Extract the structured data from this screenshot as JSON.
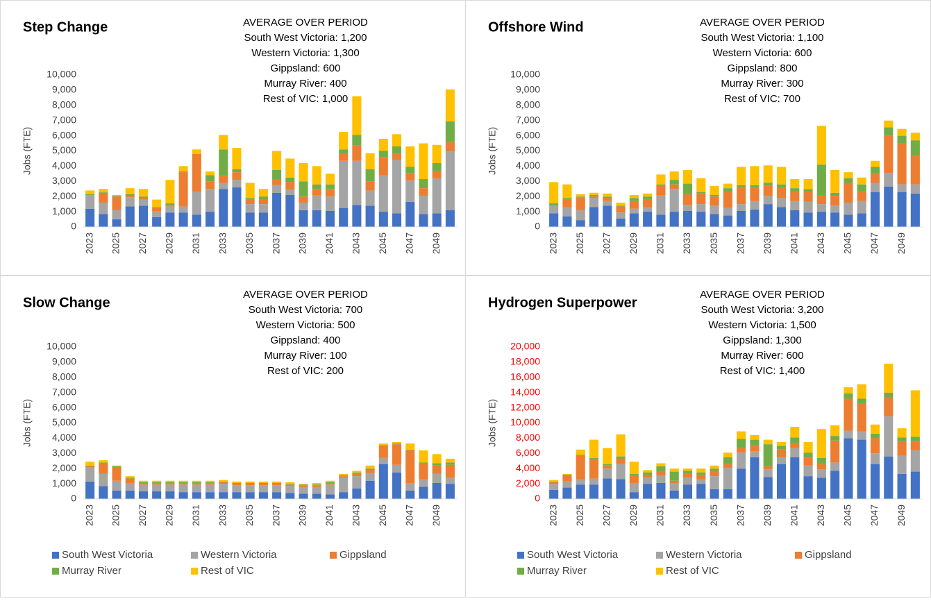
{
  "chart_data": [
    {
      "type": "bar",
      "stacked": true,
      "title": "Step Change",
      "annotation": [
        "AVERAGE OVER PERIOD",
        "South West Victoria: 1,200",
        "Western Victoria: 1,300",
        "Gippsland: 600",
        "Murray River: 400",
        "Rest of VIC: 1,000"
      ],
      "ylabel": "Jobs (FTE)",
      "categories": [
        "2023",
        null,
        "2025",
        null,
        "2027",
        null,
        "2029",
        null,
        "2031",
        null,
        "2033",
        null,
        "2035",
        null,
        "2037",
        null,
        "2039",
        null,
        "2041",
        null,
        "2043",
        null,
        "2045",
        null,
        "2047",
        null,
        "2049",
        null
      ],
      "series": [
        {
          "color": "#4472c4",
          "values": [
            1200,
            850,
            500,
            1350,
            1400,
            650,
            950,
            950,
            800,
            1000,
            2500,
            2600,
            950,
            950,
            2250,
            2100,
            1100,
            1100,
            1050,
            1250,
            1450,
            1400,
            1000,
            900,
            1650,
            850,
            900,
            1100
          ]
        },
        {
          "color": "#a5a5a5",
          "values": [
            900,
            750,
            600,
            600,
            400,
            400,
            400,
            400,
            1500,
            1500,
            400,
            500,
            550,
            550,
            500,
            350,
            500,
            1000,
            950,
            3100,
            2900,
            1000,
            2400,
            3500,
            1400,
            1200,
            2300,
            3900
          ]
        },
        {
          "color": "#ed7d31",
          "values": [
            0,
            650,
            900,
            100,
            100,
            200,
            100,
            2250,
            2500,
            500,
            500,
            500,
            300,
            300,
            400,
            500,
            400,
            400,
            500,
            450,
            1000,
            600,
            1200,
            400,
            500,
            500,
            500,
            600
          ]
        },
        {
          "color": "#70ad47",
          "values": [
            50,
            50,
            50,
            100,
            100,
            50,
            100,
            50,
            0,
            400,
            1700,
            200,
            100,
            200,
            600,
            300,
            1000,
            300,
            300,
            300,
            700,
            800,
            400,
            500,
            400,
            600,
            500,
            1350
          ]
        },
        {
          "color": "#ffc000",
          "values": [
            250,
            200,
            50,
            400,
            500,
            500,
            1550,
            350,
            300,
            250,
            950,
            1400,
            1000,
            500,
            1250,
            1250,
            1200,
            1200,
            700,
            1150,
            2550,
            1050,
            800,
            800,
            1350,
            2350,
            1200,
            2100
          ]
        }
      ],
      "ylim": [
        0,
        10000
      ],
      "yticks": [
        0,
        {
          "value": 1000,
          "label": "1,000"
        },
        {
          "value": 2000,
          "label": "2,000"
        },
        {
          "value": 3000,
          "label": "3,000"
        },
        {
          "value": 4000,
          "label": "4,000"
        },
        {
          "value": 5000,
          "label": "5,000"
        },
        {
          "value": 6000,
          "label": "6,000"
        },
        {
          "value": 7000,
          "label": "7,000"
        },
        {
          "value": 8000,
          "label": "8,000"
        },
        {
          "value": 9000,
          "label": "9,000"
        },
        {
          "value": 10000,
          "label": "10,000"
        }
      ],
      "ytick_color": "#404040",
      "grid": false
    },
    {
      "type": "bar",
      "stacked": true,
      "title": "Offshore Wind",
      "annotation": [
        "AVERAGE OVER PERIOD",
        "South West Victoria: 1,100",
        "Western Victoria: 600",
        "Gippsland: 800",
        "Murray River: 300",
        "Rest of VIC: 700"
      ],
      "ylabel": "Jobs (FTE)",
      "categories": [
        "2023",
        null,
        "2025",
        null,
        "2027",
        null,
        "2029",
        null,
        "2031",
        null,
        "2033",
        null,
        "2035",
        null,
        "2037",
        null,
        "2039",
        null,
        "2041",
        null,
        "2043",
        null,
        "2045",
        null,
        "2047",
        null,
        "2049",
        null
      ],
      "series": [
        {
          "color": "#4472c4",
          "values": [
            900,
            700,
            450,
            1300,
            1400,
            550,
            900,
            1000,
            800,
            1000,
            1050,
            1000,
            850,
            750,
            1050,
            1150,
            1500,
            1300,
            1100,
            950,
            1000,
            950,
            800,
            900,
            2300,
            2650,
            2300,
            2200
          ]
        },
        {
          "color": "#a5a5a5",
          "values": [
            500,
            600,
            650,
            600,
            300,
            400,
            300,
            300,
            1300,
            1500,
            400,
            500,
            550,
            500,
            450,
            550,
            550,
            600,
            600,
            700,
            500,
            450,
            800,
            800,
            600,
            900,
            500,
            600
          ]
        },
        {
          "color": "#ed7d31",
          "values": [
            0,
            500,
            850,
            100,
            200,
            400,
            500,
            500,
            600,
            300,
            700,
            700,
            600,
            1100,
            1100,
            900,
            650,
            700,
            650,
            650,
            600,
            650,
            1300,
            600,
            600,
            2450,
            2700,
            1900
          ]
        },
        {
          "color": "#70ad47",
          "values": [
            150,
            100,
            50,
            100,
            100,
            50,
            200,
            200,
            100,
            300,
            700,
            100,
            100,
            200,
            150,
            150,
            200,
            200,
            200,
            200,
            2000,
            200,
            300,
            500,
            450,
            550,
            500,
            1000
          ]
        },
        {
          "color": "#ffc000",
          "values": [
            1400,
            900,
            150,
            150,
            200,
            200,
            200,
            200,
            650,
            550,
            900,
            900,
            600,
            300,
            1200,
            1250,
            1150,
            1150,
            600,
            650,
            2550,
            1500,
            400,
            450,
            400,
            450,
            450,
            500
          ]
        }
      ],
      "ylim": [
        0,
        10000
      ],
      "yticks": [
        0,
        {
          "value": 1000,
          "label": "1,000"
        },
        {
          "value": 2000,
          "label": "2,000"
        },
        {
          "value": 3000,
          "label": "3,000"
        },
        {
          "value": 4000,
          "label": "4,000"
        },
        {
          "value": 5000,
          "label": "5,000"
        },
        {
          "value": 6000,
          "label": "6,000"
        },
        {
          "value": 7000,
          "label": "7,000"
        },
        {
          "value": 8000,
          "label": "8,000"
        },
        {
          "value": 9000,
          "label": "9,000"
        },
        {
          "value": 10000,
          "label": "10,000"
        }
      ],
      "ytick_color": "#404040",
      "grid": false
    },
    {
      "type": "bar",
      "stacked": true,
      "title": "Slow Change",
      "annotation": [
        "AVERAGE OVER PERIOD",
        "South West Victoria: 700",
        "Western Victoria: 500",
        "Gippsland: 400",
        "Murray River: 100",
        "Rest of VIC: 200"
      ],
      "ylabel": "Jobs (FTE)",
      "categories": [
        "2023",
        null,
        "2025",
        null,
        "2027",
        null,
        "2029",
        null,
        "2031",
        null,
        "2033",
        null,
        "2035",
        null,
        "2037",
        null,
        "2039",
        null,
        "2041",
        null,
        "2043",
        null,
        "2045",
        null,
        "2047",
        null,
        "2049",
        null
      ],
      "series": [
        {
          "name": "South West Victoria",
          "color": "#4472c4",
          "values": [
            1150,
            850,
            550,
            550,
            500,
            500,
            500,
            450,
            450,
            450,
            450,
            450,
            450,
            450,
            450,
            400,
            350,
            350,
            300,
            450,
            700,
            1200,
            2300,
            1750,
            550,
            800,
            1050,
            1000
          ]
        },
        {
          "name": "Western Victoria",
          "color": "#a5a5a5",
          "values": [
            950,
            800,
            650,
            500,
            450,
            450,
            450,
            500,
            500,
            500,
            550,
            450,
            450,
            450,
            450,
            450,
            450,
            450,
            650,
            950,
            800,
            500,
            400,
            500,
            500,
            500,
            600,
            400
          ]
        },
        {
          "name": "Gippsland",
          "color": "#ed7d31",
          "values": [
            50,
            700,
            900,
            300,
            100,
            100,
            100,
            100,
            100,
            100,
            100,
            100,
            100,
            100,
            100,
            100,
            100,
            100,
            100,
            100,
            200,
            200,
            800,
            1350,
            2150,
            1050,
            550,
            850
          ]
        },
        {
          "name": "Murray River",
          "color": "#70ad47",
          "values": [
            50,
            50,
            50,
            50,
            50,
            50,
            50,
            50,
            50,
            50,
            50,
            50,
            50,
            50,
            50,
            50,
            50,
            50,
            50,
            50,
            50,
            100,
            50,
            50,
            50,
            50,
            150,
            150
          ]
        },
        {
          "name": "Rest of VIC",
          "color": "#ffc000",
          "values": [
            250,
            150,
            50,
            100,
            100,
            100,
            100,
            100,
            100,
            100,
            100,
            100,
            100,
            100,
            100,
            100,
            50,
            100,
            100,
            100,
            100,
            200,
            100,
            100,
            400,
            800,
            600,
            250
          ]
        }
      ],
      "ylim": [
        0,
        10000
      ],
      "yticks": [
        0,
        {
          "value": 1000,
          "label": "1,000"
        },
        {
          "value": 2000,
          "label": "2,000"
        },
        {
          "value": 3000,
          "label": "3,000"
        },
        {
          "value": 4000,
          "label": "4,000"
        },
        {
          "value": 5000,
          "label": "5,000"
        },
        {
          "value": 6000,
          "label": "6,000"
        },
        {
          "value": 7000,
          "label": "7,000"
        },
        {
          "value": 8000,
          "label": "8,000"
        },
        {
          "value": 9000,
          "label": "9,000"
        },
        {
          "value": 10000,
          "label": "10,000"
        }
      ],
      "ytick_color": "#404040",
      "grid": false,
      "legend": "bottom"
    },
    {
      "type": "bar",
      "stacked": true,
      "title": "Hydrogen Superpower",
      "annotation": [
        "AVERAGE OVER PERIOD",
        "South West Victoria: 3,200",
        "Western Victoria: 1,500",
        "Gippsland: 1,300",
        "Murray River: 600",
        "Rest of VIC: 1,400"
      ],
      "ylabel": "Jobs (FTE)",
      "categories": [
        "2023",
        null,
        "2025",
        null,
        "2027",
        null,
        "2029",
        null,
        "2031",
        null,
        "2033",
        null,
        "2035",
        null,
        "2037",
        null,
        "2039",
        null,
        "2041",
        null,
        "2043",
        null,
        "2045",
        null,
        "2047",
        null,
        "2049",
        null
      ],
      "series": [
        {
          "name": "South West Victoria",
          "color": "#4472c4",
          "values": [
            1200,
            1500,
            1900,
            1900,
            2700,
            2600,
            900,
            2000,
            2100,
            1100,
            1900,
            2000,
            1300,
            1300,
            4000,
            5500,
            2900,
            4600,
            5500,
            3000,
            2800,
            3700,
            8000,
            7800,
            4600,
            5600,
            3300,
            3600
          ]
        },
        {
          "name": "Western Victoria",
          "color": "#a5a5a5",
          "values": [
            800,
            800,
            700,
            800,
            1300,
            2000,
            1200,
            800,
            1000,
            1000,
            900,
            600,
            1700,
            2800,
            2100,
            800,
            1000,
            900,
            1200,
            1400,
            1100,
            1100,
            1000,
            1100,
            1400,
            5300,
            2400,
            2800
          ]
        },
        {
          "name": "Gippsland",
          "color": "#ed7d31",
          "values": [
            200,
            800,
            3100,
            2600,
            400,
            700,
            1000,
            400,
            500,
            300,
            500,
            600,
            700,
            500,
            600,
            700,
            400,
            1000,
            700,
            1000,
            700,
            2900,
            4200,
            3700,
            2000,
            2400,
            1800,
            1200
          ]
        },
        {
          "name": "Murray River",
          "color": "#70ad47",
          "values": [
            100,
            100,
            100,
            100,
            200,
            300,
            200,
            300,
            700,
            1200,
            400,
            300,
            300,
            900,
            1200,
            800,
            2900,
            500,
            700,
            700,
            800,
            600,
            700,
            600,
            600,
            700,
            600,
            600
          ]
        },
        {
          "name": "Rest of VIC",
          "color": "#ffc000",
          "values": [
            200,
            100,
            700,
            2400,
            2100,
            2900,
            1600,
            300,
            400,
            400,
            300,
            500,
            400,
            600,
            1000,
            600,
            600,
            500,
            1400,
            1400,
            3800,
            1400,
            800,
            1900,
            1200,
            3800,
            1200,
            6100
          ]
        }
      ],
      "ylim": [
        0,
        20000
      ],
      "yticks": [
        0,
        {
          "value": 2000,
          "label": "2,000"
        },
        {
          "value": 4000,
          "label": "4,000"
        },
        {
          "value": 6000,
          "label": "6,000"
        },
        {
          "value": 8000,
          "label": "8,000"
        },
        {
          "value": 10000,
          "label": "10,000"
        },
        {
          "value": 12000,
          "label": "12,000"
        },
        {
          "value": 14000,
          "label": "14,000"
        },
        {
          "value": 16000,
          "label": "16,000"
        },
        {
          "value": 18000,
          "label": "18,000"
        },
        {
          "value": 20000,
          "label": "20,000"
        }
      ],
      "ytick_color": "#ff0000",
      "grid": false,
      "legend": "bottom"
    }
  ]
}
